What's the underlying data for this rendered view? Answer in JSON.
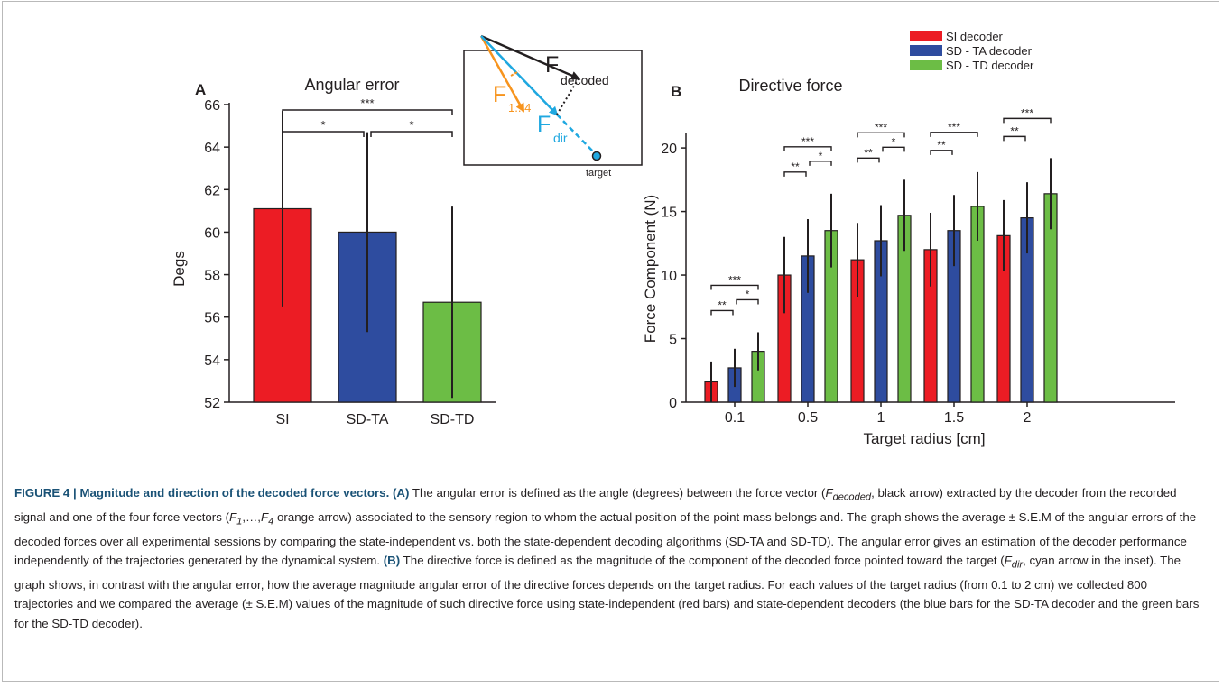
{
  "panel_a": {
    "label": "A",
    "title": "Angular error",
    "ylabel": "Degs",
    "significance": [
      "***",
      "*",
      "*"
    ]
  },
  "panel_b": {
    "label": "B",
    "title": "Directive force",
    "ylabel": "Force Component (N)",
    "xlabel": "Target radius [cm]",
    "legend": [
      "SI decoder",
      "SD - TA decoder",
      "SD - TD decoder"
    ],
    "significance_label_sets": [
      "***",
      "*",
      "**"
    ]
  },
  "inset": {
    "f_decoded": "F",
    "f_decoded_sub": "decoded",
    "f_14": "F",
    "f_14_sub": "1...4",
    "f_dir": "F",
    "f_dir_sub": "dir",
    "target": "target"
  },
  "colors": {
    "si": "#ec1c24",
    "sd_ta": "#2e4c9f",
    "sd_td": "#6cbd45",
    "inset_orange": "#f7941d",
    "inset_cyan": "#1fa8e0"
  },
  "chart_data": [
    {
      "type": "bar",
      "title": "Angular error",
      "ylabel": "Degs",
      "categories": [
        "SI",
        "SD-TA",
        "SD-TD"
      ],
      "values": [
        61.1,
        60.0,
        56.7
      ],
      "errors": [
        4.6,
        4.7,
        4.5
      ],
      "ylim": [
        52,
        66
      ],
      "yticks": [
        52,
        54,
        56,
        58,
        60,
        62,
        64,
        66
      ]
    },
    {
      "type": "bar",
      "title": "Directive force",
      "xlabel": "Target radius [cm]",
      "ylabel": "Force Component (N)",
      "categories": [
        "0.1",
        "0.5",
        "1",
        "1.5",
        "2"
      ],
      "ylim": [
        0,
        21
      ],
      "yticks": [
        0,
        5,
        10,
        15,
        20
      ],
      "legend_position": "top-right",
      "series": [
        {
          "name": "SI decoder",
          "values": [
            1.6,
            10.0,
            11.2,
            12.0,
            13.1
          ],
          "errors": [
            1.6,
            3.0,
            2.9,
            2.9,
            2.8
          ]
        },
        {
          "name": "SD - TA decoder",
          "values": [
            2.7,
            11.5,
            12.7,
            13.5,
            14.5
          ],
          "errors": [
            1.5,
            2.9,
            2.8,
            2.8,
            2.8
          ]
        },
        {
          "name": "SD - TD decoder",
          "values": [
            4.0,
            13.5,
            14.7,
            15.4,
            16.4
          ],
          "errors": [
            1.5,
            2.9,
            2.8,
            2.7,
            2.8
          ]
        }
      ]
    }
  ],
  "caption": {
    "label": "FIGURE 4 |",
    "title": "Magnitude and direction of the decoded force vectors.",
    "a_label": "(A)",
    "b_label": "(B)",
    "text_a1": "The angular error is defined as the angle (degrees) between the force vector (",
    "text_a1_var": "F",
    "text_a1_sub": "decoded",
    "text_a2": ", black arrow) extracted by the decoder from the recorded signal and one of the four force vectors (",
    "text_a2_var1": "F",
    "text_a2_sub1": "1",
    "text_a2_mid": ",…,",
    "text_a2_var2": "F",
    "text_a2_sub2": "4",
    "text_a3": " orange arrow) associated to the sensory region to whom the actual position of the point mass belongs and. The graph shows the average ± S.E.M of the angular errors of the decoded forces over all experimental sessions by comparing the state-independent vs. both the state-dependent decoding algorithms (SD-TA and SD-TD). The angular error gives an estimation of the decoder performance independently of the trajectories generated by the dynamical system. ",
    "text_b1": " The directive force is defined as the magnitude of the component of the decoded force pointed toward the target (",
    "text_b1_var": "F",
    "text_b1_sub": "dir",
    "text_b2": ", cyan arrow in the inset). The graph shows, in contrast with the angular error, how the average magnitude angular error of the directive forces depends on the target radius. For each values of the target radius (from 0.1 to 2 cm) we collected 800 trajectories and we compared the average (± S.E.M) values of the magnitude of such directive force using state-independent (red bars) and state-dependent decoders (the blue bars for the SD-TA decoder and the green bars for the SD-TD decoder)."
  }
}
